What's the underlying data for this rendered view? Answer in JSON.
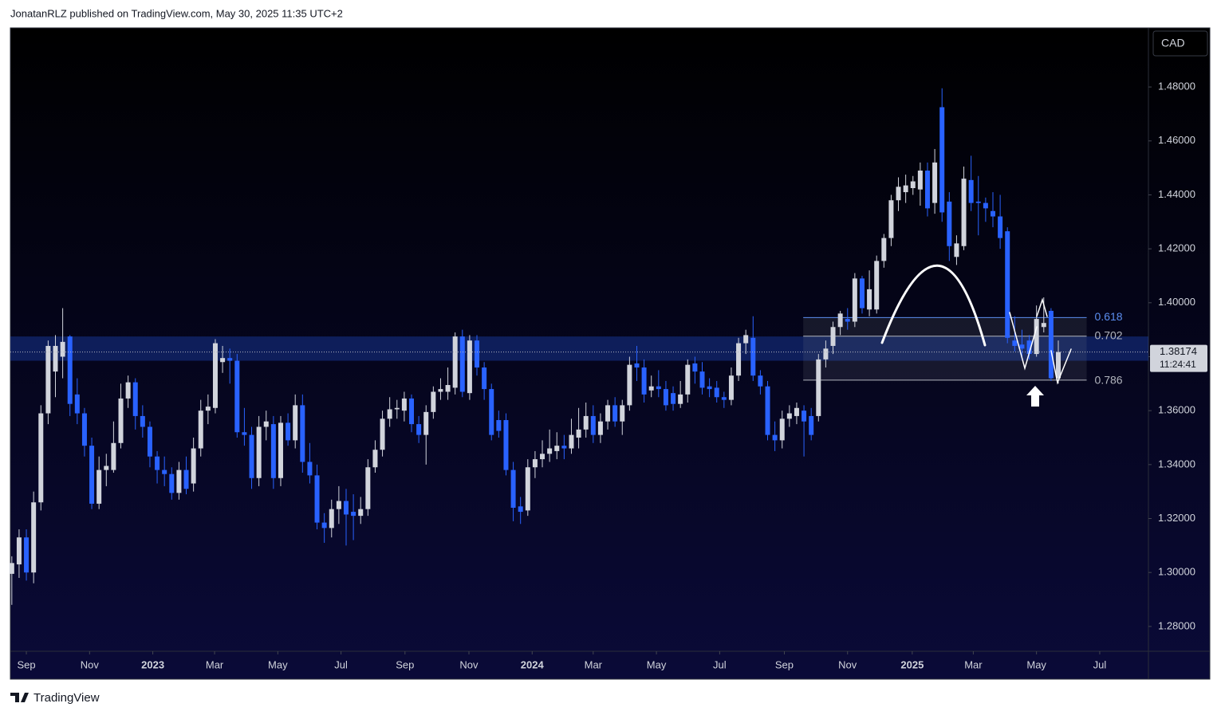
{
  "header": "JonatanRLZ published on TradingView.com, May 30, 2025 11:35 UTC+2",
  "footer": "TradingView",
  "chart_data": {
    "type": "candlestick",
    "y_axis_label": "CAD",
    "up_color": "#d1d4dc",
    "down_color": "#2962ff",
    "x": [
      -2,
      -1,
      0,
      1,
      2,
      3,
      4,
      5,
      6,
      7,
      8,
      9,
      10,
      11,
      12,
      13,
      14,
      15,
      16,
      17,
      18,
      19,
      20,
      21,
      22,
      23,
      24,
      25,
      26,
      27,
      28,
      29,
      30,
      31,
      32,
      33,
      34,
      35,
      36,
      37,
      38,
      39,
      40,
      41,
      42,
      43,
      44,
      45,
      46,
      47,
      48,
      49,
      50,
      51,
      52,
      53,
      54,
      55,
      56,
      57,
      58,
      59,
      60,
      61,
      62,
      63,
      64,
      65,
      66,
      67,
      68,
      69,
      70,
      71,
      72,
      73,
      74,
      75,
      76,
      77,
      78,
      79,
      80,
      81,
      82,
      83,
      84,
      85,
      86,
      87,
      88,
      89,
      90,
      91,
      92,
      93,
      94,
      95,
      96,
      97,
      98,
      99,
      100,
      101,
      102,
      103,
      104,
      105,
      106,
      107,
      108,
      109,
      110,
      111,
      112,
      113,
      114,
      115,
      116,
      117,
      118,
      119,
      120,
      121,
      122,
      123,
      124,
      125,
      126,
      127,
      128,
      129,
      130,
      131,
      132,
      133,
      134,
      135,
      136,
      137,
      138,
      139,
      140,
      141,
      142
    ],
    "open": [
      1.2995,
      1.303,
      1.313,
      1.3,
      1.326,
      1.359,
      1.3745,
      1.38,
      1.3875,
      1.366,
      1.359,
      1.347,
      1.3255,
      1.338,
      1.338,
      1.348,
      1.3645,
      1.3705,
      1.358,
      1.354,
      1.343,
      1.338,
      1.3365,
      1.3295,
      1.338,
      1.333,
      1.346,
      1.36,
      1.361,
      1.378,
      1.3795,
      1.3785,
      1.352,
      1.351,
      1.335,
      1.354,
      1.355,
      1.335,
      1.3555,
      1.349,
      1.362,
      1.341,
      1.336,
      1.3185,
      1.3165,
      1.3235,
      1.3265,
      1.3225,
      1.321,
      1.3235,
      1.339,
      1.3455,
      1.357,
      1.3605,
      1.36,
      1.3645,
      1.355,
      1.351,
      1.3595,
      1.367,
      1.367,
      1.3685,
      1.3875,
      1.3665,
      1.386,
      1.376,
      1.368,
      1.3565,
      1.3565,
      1.338,
      1.3245,
      1.323,
      1.339,
      1.342,
      1.344,
      1.345,
      1.347,
      1.346,
      1.35,
      1.353,
      1.358,
      1.351,
      1.356,
      1.362,
      1.356,
      1.362,
      1.3775,
      1.376,
      1.3675,
      1.369,
      1.368,
      1.3665,
      1.3625,
      1.366,
      1.3775,
      1.3745,
      1.369,
      1.3685,
      1.365,
      1.364,
      1.373,
      1.385,
      1.387,
      1.373,
      1.369,
      1.351,
      1.349,
      1.357,
      1.358,
      1.36,
      1.358,
      1.358,
      1.379,
      1.384,
      1.391,
      1.394,
      1.393,
      1.409,
      1.3975,
      1.3975,
      1.4155,
      1.424,
      1.438,
      1.441,
      1.4425,
      1.442,
      1.449,
      1.437,
      1.4725,
      1.4375,
      1.417,
      1.421,
      1.4455,
      1.4375,
      1.437,
      1.434,
      1.432,
      1.4265,
      1.386,
      1.3845,
      1.386,
      1.381,
      1.391,
      1.397,
      1.372
    ],
    "high": [
      1.306,
      1.316,
      1.316,
      1.33,
      1.362,
      1.386,
      1.388,
      1.398,
      1.388,
      1.372,
      1.361,
      1.35,
      1.343,
      1.344,
      1.356,
      1.37,
      1.373,
      1.372,
      1.362,
      1.356,
      1.345,
      1.343,
      1.339,
      1.341,
      1.343,
      1.35,
      1.364,
      1.366,
      1.3865,
      1.384,
      1.383,
      1.381,
      1.361,
      1.354,
      1.358,
      1.36,
      1.358,
      1.358,
      1.359,
      1.366,
      1.366,
      1.348,
      1.34,
      1.322,
      1.327,
      1.332,
      1.331,
      1.329,
      1.328,
      1.342,
      1.349,
      1.36,
      1.365,
      1.364,
      1.367,
      1.366,
      1.358,
      1.362,
      1.369,
      1.372,
      1.376,
      1.389,
      1.39,
      1.388,
      1.388,
      1.378,
      1.37,
      1.36,
      1.359,
      1.341,
      1.328,
      1.342,
      1.345,
      1.349,
      1.353,
      1.352,
      1.351,
      1.357,
      1.361,
      1.363,
      1.362,
      1.359,
      1.364,
      1.365,
      1.364,
      1.38,
      1.384,
      1.379,
      1.373,
      1.375,
      1.371,
      1.369,
      1.371,
      1.379,
      1.38,
      1.378,
      1.372,
      1.371,
      1.367,
      1.376,
      1.387,
      1.39,
      1.395,
      1.375,
      1.371,
      1.356,
      1.36,
      1.362,
      1.363,
      1.362,
      1.361,
      1.381,
      1.386,
      1.393,
      1.397,
      1.398,
      1.411,
      1.41,
      1.412,
      1.4175,
      1.4255,
      1.44,
      1.4465,
      1.4475,
      1.447,
      1.452,
      1.452,
      1.457,
      1.4795,
      1.441,
      1.425,
      1.4505,
      1.4545,
      1.447,
      1.439,
      1.441,
      1.44,
      1.428,
      1.395,
      1.39,
      1.388,
      1.399,
      1.402,
      1.398,
      1.386
    ],
    "low": [
      1.288,
      1.298,
      1.297,
      1.296,
      1.323,
      1.355,
      1.365,
      1.372,
      1.358,
      1.355,
      1.343,
      1.3235,
      1.3235,
      1.332,
      1.337,
      1.346,
      1.361,
      1.353,
      1.35,
      1.339,
      1.333,
      1.332,
      1.327,
      1.327,
      1.329,
      1.33,
      1.343,
      1.355,
      1.359,
      1.374,
      1.37,
      1.35,
      1.347,
      1.331,
      1.332,
      1.349,
      1.331,
      1.332,
      1.347,
      1.346,
      1.337,
      1.333,
      1.316,
      1.311,
      1.313,
      1.318,
      1.31,
      1.312,
      1.318,
      1.321,
      1.337,
      1.343,
      1.354,
      1.357,
      1.356,
      1.352,
      1.348,
      1.34,
      1.357,
      1.364,
      1.364,
      1.366,
      1.365,
      1.364,
      1.373,
      1.364,
      1.349,
      1.35,
      1.336,
      1.319,
      1.318,
      1.321,
      1.335,
      1.339,
      1.341,
      1.342,
      1.342,
      1.344,
      1.346,
      1.35,
      1.348,
      1.348,
      1.353,
      1.354,
      1.351,
      1.36,
      1.371,
      1.363,
      1.365,
      1.365,
      1.36,
      1.36,
      1.361,
      1.363,
      1.37,
      1.366,
      1.365,
      1.363,
      1.361,
      1.362,
      1.371,
      1.381,
      1.371,
      1.366,
      1.349,
      1.345,
      1.346,
      1.354,
      1.355,
      1.343,
      1.349,
      1.356,
      1.376,
      1.381,
      1.388,
      1.39,
      1.391,
      1.396,
      1.395,
      1.396,
      1.413,
      1.421,
      1.434,
      1.437,
      1.44,
      1.436,
      1.432,
      1.433,
      1.43,
      1.4155,
      1.414,
      1.4195,
      1.434,
      1.425,
      1.43,
      1.428,
      1.42,
      1.385,
      1.382,
      1.38,
      1.379,
      1.38,
      1.389,
      1.371,
      1.37
    ],
    "close": [
      1.3035,
      1.313,
      1.3,
      1.326,
      1.359,
      1.384,
      1.384,
      1.3855,
      1.3625,
      1.359,
      1.347,
      1.3255,
      1.338,
      1.3395,
      1.348,
      1.3645,
      1.3705,
      1.358,
      1.354,
      1.343,
      1.338,
      1.3365,
      1.3295,
      1.338,
      1.331,
      1.346,
      1.36,
      1.3615,
      1.385,
      1.3795,
      1.3785,
      1.352,
      1.351,
      1.335,
      1.354,
      1.356,
      1.335,
      1.3555,
      1.349,
      1.362,
      1.341,
      1.336,
      1.3185,
      1.3165,
      1.3235,
      1.3265,
      1.3215,
      1.321,
      1.3235,
      1.339,
      1.3455,
      1.357,
      1.3605,
      1.361,
      1.3645,
      1.355,
      1.351,
      1.3595,
      1.367,
      1.368,
      1.3695,
      1.3875,
      1.367,
      1.386,
      1.376,
      1.368,
      1.351,
      1.3525,
      1.338,
      1.324,
      1.3225,
      1.339,
      1.342,
      1.344,
      1.346,
      1.347,
      1.346,
      1.351,
      1.353,
      1.358,
      1.351,
      1.356,
      1.362,
      1.356,
      1.362,
      1.377,
      1.376,
      1.366,
      1.369,
      1.368,
      1.362,
      1.3625,
      1.366,
      1.377,
      1.3745,
      1.3685,
      1.368,
      1.365,
      1.364,
      1.373,
      1.385,
      1.388,
      1.373,
      1.369,
      1.351,
      1.349,
      1.357,
      1.359,
      1.361,
      1.356,
      1.351,
      1.379,
      1.383,
      1.391,
      1.396,
      1.393,
      1.409,
      1.398,
      1.405,
      1.4155,
      1.424,
      1.438,
      1.443,
      1.4435,
      1.445,
      1.449,
      1.435,
      1.452,
      1.4335,
      1.421,
      1.422,
      1.446,
      1.437,
      1.437,
      1.435,
      1.432,
      1.424,
      1.387,
      1.384,
      1.383,
      1.381,
      1.394,
      1.3925,
      1.372,
      1.38174
    ],
    "last_price": 1.38174,
    "countdown": "11:24:41",
    "zone": [
      1.3785,
      1.3875
    ],
    "fib": {
      "x": [
        106.9,
        145.9
      ],
      "levels": [
        {
          "value": 0.618,
          "price": 1.3945,
          "color": "#5b8def"
        },
        {
          "value": 0.702,
          "price": 1.3876,
          "color": "#b2b5be"
        },
        {
          "value": 0.786,
          "price": 1.3713,
          "color": "#b2b5be"
        }
      ]
    },
    "xlim": [
      -2.2,
      154.4
    ],
    "ylim": [
      1.2708,
      1.5019
    ],
    "xticks": [
      {
        "value": 0,
        "label": "Sep"
      },
      {
        "value": 8.7,
        "label": "Nov"
      },
      {
        "value": 17.4,
        "label": "2023"
      },
      {
        "value": 25.9,
        "label": "Mar"
      },
      {
        "value": 34.6,
        "label": "May"
      },
      {
        "value": 43.3,
        "label": "Jul"
      },
      {
        "value": 52.1,
        "label": "Sep"
      },
      {
        "value": 60.9,
        "label": "Nov"
      },
      {
        "value": 69.6,
        "label": "2024"
      },
      {
        "value": 78.0,
        "label": "Mar"
      },
      {
        "value": 86.7,
        "label": "May"
      },
      {
        "value": 95.4,
        "label": "Jul"
      },
      {
        "value": 104.3,
        "label": "Sep"
      },
      {
        "value": 113.0,
        "label": "Nov"
      },
      {
        "value": 121.9,
        "label": "2025"
      },
      {
        "value": 130.3,
        "label": "Mar"
      },
      {
        "value": 139.0,
        "label": "May"
      },
      {
        "value": 147.7,
        "label": "Jul"
      }
    ],
    "yticks": [
      {
        "value": 1.28,
        "label": "1.28000"
      },
      {
        "value": 1.3,
        "label": "1.30000"
      },
      {
        "value": 1.32,
        "label": "1.32000"
      },
      {
        "value": 1.34,
        "label": "1.34000"
      },
      {
        "value": 1.36,
        "label": "1.36000"
      },
      {
        "value": 1.38,
        "label": "1.38000"
      },
      {
        "value": 1.4,
        "label": "1.40000"
      },
      {
        "value": 1.42,
        "label": "1.42000"
      },
      {
        "value": 1.44,
        "label": "1.44000"
      },
      {
        "value": 1.46,
        "label": "1.46000"
      },
      {
        "value": 1.48,
        "label": "1.48000"
      }
    ]
  }
}
